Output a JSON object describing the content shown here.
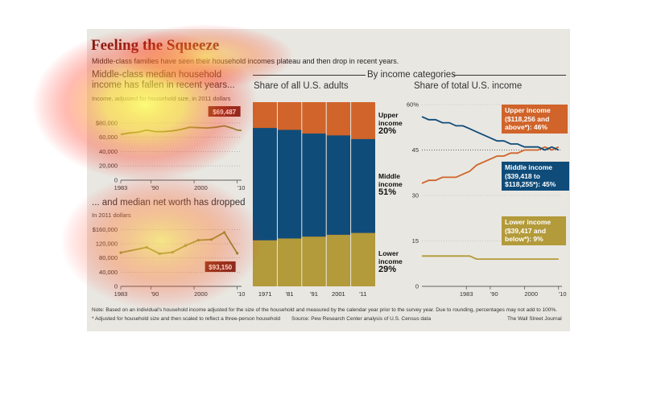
{
  "header": {
    "title": "Feeling the Squeeze",
    "subtitle": "Middle-class families have seen their household incomes plateau and then drop in recent years.",
    "by_categories": "By income categories"
  },
  "footer": {
    "note": "Note: Based on an individual's household income adjusted for the size of the household and measured by the calendar year prior to the survey year. Due to rounding, percentages may not add to 100%.",
    "asterisk": "* Adjusted for household size and then scaled to reflect a three-person household",
    "source": "Source: Pew Research Center analysis of U.S. Census data",
    "publisher": "The Wall Street Journal"
  },
  "colors": {
    "background": "#e9e7e1",
    "title": "#7a1a12",
    "upper": "#d0642a",
    "middle": "#0f4c7a",
    "lower": "#b39a3a",
    "line": "#8a8f3a",
    "callout": "#7d2a1f"
  },
  "chart_data": [
    {
      "type": "line",
      "title": "Middle-class median household income has fallen in recent years...",
      "ylabel": "Income, adjusted for household size, in 2011 dollars",
      "x_ticks": [
        "1983",
        "'90",
        "2000",
        "'10"
      ],
      "y_ticks": [
        "$80,000",
        "60,000",
        "40,000",
        "20,000",
        "0"
      ],
      "ylim": [
        0,
        90000
      ],
      "x": [
        1983,
        1985,
        1987,
        1989,
        1991,
        1993,
        1995,
        1997,
        1999,
        2001,
        2003,
        2005,
        2007,
        2009,
        2010,
        2011
      ],
      "values": [
        64000,
        66000,
        67000,
        70000,
        68000,
        68000,
        69000,
        71000,
        74000,
        73500,
        73000,
        74000,
        76000,
        72500,
        70000,
        69500
      ],
      "annotation": "$69,487"
    },
    {
      "type": "line",
      "title": "... and median net worth has dropped",
      "ylabel": "In 2011 dollars",
      "x_ticks": [
        "1983",
        "'90",
        "2000",
        "'10"
      ],
      "y_ticks": [
        "$160,000",
        "120,000",
        "80,000",
        "40,000",
        "0"
      ],
      "ylim": [
        0,
        170000
      ],
      "x": [
        1983,
        1989,
        1992,
        1995,
        1998,
        2001,
        2004,
        2007,
        2010
      ],
      "values": [
        95000,
        110000,
        92000,
        96000,
        115000,
        130000,
        132000,
        152000,
        93150
      ],
      "annotation": "$93,150"
    },
    {
      "type": "bar",
      "stacked": true,
      "title": "Share of all U.S. adults",
      "categories": [
        "1971",
        "'81",
        "'91",
        "2001",
        "'11"
      ],
      "series": [
        {
          "name": "Lower income",
          "values": [
            25,
            26,
            27,
            28,
            29
          ]
        },
        {
          "name": "Middle income",
          "values": [
            61,
            59,
            56,
            54,
            51
          ]
        },
        {
          "name": "Upper income",
          "values": [
            14,
            15,
            17,
            18,
            20
          ]
        }
      ],
      "labels": {
        "upper_name": "Upper income",
        "upper_pct": "20%",
        "middle_name": "Middle income",
        "middle_pct": "51%",
        "lower_name": "Lower income",
        "lower_pct": "29%"
      }
    },
    {
      "type": "line",
      "title": "Share of total U.S. income",
      "x_ticks": [
        "1983",
        "'90",
        "2000",
        "'10"
      ],
      "y_ticks": [
        "60%",
        "45",
        "30",
        "15",
        "0"
      ],
      "ylim": [
        0,
        60
      ],
      "x": [
        1970,
        1972,
        1974,
        1976,
        1978,
        1980,
        1982,
        1984,
        1986,
        1988,
        1990,
        1992,
        1994,
        1996,
        1998,
        2000,
        2002,
        2004,
        2006,
        2008,
        2010
      ],
      "series": [
        {
          "name": "Upper income ($118,256 and above*): 46%",
          "values": [
            34,
            35,
            35,
            36,
            36,
            36,
            37,
            38,
            40,
            41,
            42,
            43,
            43,
            44,
            44,
            45,
            45,
            45,
            46,
            45,
            46
          ]
        },
        {
          "name": "Middle income ($39,418 to $118,255*): 45%",
          "values": [
            56,
            55,
            55,
            54,
            54,
            53,
            53,
            52,
            51,
            50,
            49,
            48,
            48,
            47,
            47,
            46,
            46,
            46,
            45,
            46,
            45
          ]
        },
        {
          "name": "Lower income ($39,417 and below*): 9%",
          "values": [
            10,
            10,
            10,
            10,
            10,
            10,
            10,
            10,
            9,
            9,
            9,
            9,
            9,
            9,
            9,
            9,
            9,
            9,
            9,
            9,
            9
          ]
        }
      ],
      "callouts": {
        "upper": "Upper income ($118,256 and above*): 46%",
        "middle": "Middle income ($39,418 to $118,255*): 45%",
        "lower": "Lower income ($39,417 and below*): 9%"
      }
    }
  ]
}
